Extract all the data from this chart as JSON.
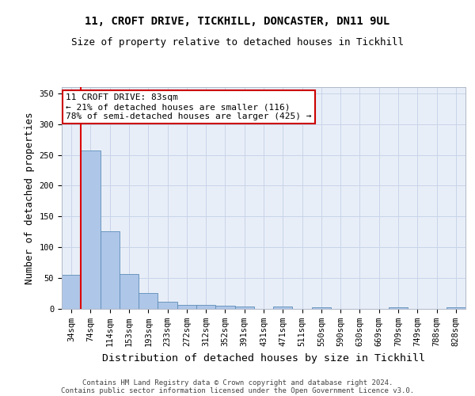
{
  "title1": "11, CROFT DRIVE, TICKHILL, DONCASTER, DN11 9UL",
  "title2": "Size of property relative to detached houses in Tickhill",
  "xlabel": "Distribution of detached houses by size in Tickhill",
  "ylabel": "Number of detached properties",
  "footer1": "Contains HM Land Registry data © Crown copyright and database right 2024.",
  "footer2": "Contains public sector information licensed under the Open Government Licence v3.0.",
  "annotation_line1": "11 CROFT DRIVE: 83sqm",
  "annotation_line2": "← 21% of detached houses are smaller (116)",
  "annotation_line3": "78% of semi-detached houses are larger (425) →",
  "bar_values": [
    55,
    257,
    126,
    57,
    26,
    12,
    6,
    6,
    5,
    4,
    0,
    4,
    0,
    3,
    0,
    0,
    0,
    3,
    0,
    0,
    3
  ],
  "bar_labels": [
    "34sqm",
    "74sqm",
    "114sqm",
    "153sqm",
    "193sqm",
    "233sqm",
    "272sqm",
    "312sqm",
    "352sqm",
    "391sqm",
    "431sqm",
    "471sqm",
    "511sqm",
    "550sqm",
    "590sqm",
    "630sqm",
    "669sqm",
    "709sqm",
    "749sqm",
    "788sqm",
    "828sqm"
  ],
  "bar_color": "#aec6e8",
  "bar_edge_color": "#5b8db8",
  "vline_x": 0.5,
  "annotation_box_facecolor": "#ffffff",
  "annotation_box_edgecolor": "#cc0000",
  "ylim": [
    0,
    360
  ],
  "yticks": [
    0,
    50,
    100,
    150,
    200,
    250,
    300,
    350
  ],
  "grid_color": "#c8d4e8",
  "bg_color": "#e8eef8",
  "title_fontsize": 10,
  "subtitle_fontsize": 9,
  "axis_label_fontsize": 9,
  "tick_fontsize": 7.5,
  "annotation_fontsize": 8,
  "footer_fontsize": 6.5
}
